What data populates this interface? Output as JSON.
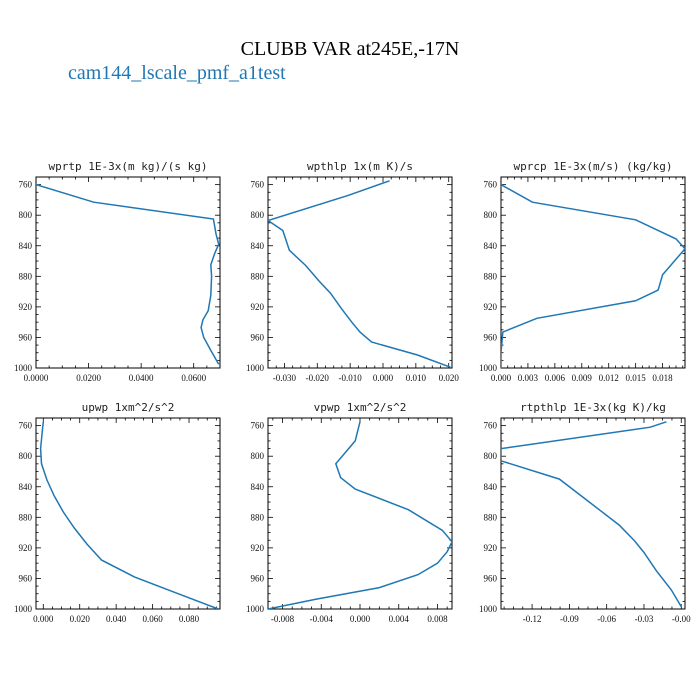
{
  "figure": {
    "title": "CLUBB VAR at245E,-17N",
    "legend_label": "cam144_lscale_pmf_a1test",
    "series_color": "#1f77b4"
  },
  "chart_data": [
    {
      "type": "line",
      "title": "wprtp  1E-3x(m kg)/(s kg)",
      "xlim": [
        0.0,
        0.07
      ],
      "ylim": [
        1000,
        750
      ],
      "yinvert": true,
      "xticks": [
        0.0,
        0.02,
        0.04,
        0.06
      ],
      "xtick_labels": [
        "0.0000",
        "0.0200",
        "0.0400",
        "0.0600"
      ],
      "yticks": [
        760,
        800,
        840,
        880,
        920,
        960,
        1000
      ],
      "x": [
        0.0,
        0.022,
        0.0675,
        0.0685,
        0.0695,
        0.068,
        0.0665,
        0.0668,
        0.0665,
        0.0655,
        0.0635,
        0.0628,
        0.0638,
        0.0665,
        0.0695
      ],
      "y": [
        760,
        783,
        805,
        825,
        838,
        850,
        865,
        880,
        905,
        925,
        937,
        947,
        960,
        977,
        995
      ]
    },
    {
      "type": "line",
      "title": "wpthlp  1x(m K)/s",
      "xlim": [
        -0.035,
        0.021
      ],
      "ylim": [
        1000,
        750
      ],
      "yinvert": true,
      "xticks": [
        -0.03,
        -0.02,
        -0.01,
        0.0,
        0.01,
        0.02
      ],
      "xtick_labels": [
        "-0.030",
        "-0.020",
        "-0.010",
        "0.000",
        "0.010",
        "0.020"
      ],
      "yticks": [
        760,
        800,
        840,
        880,
        920,
        960,
        1000
      ],
      "x": [
        0.002,
        -0.0105,
        -0.035,
        -0.0305,
        -0.0285,
        -0.0235,
        -0.0195,
        -0.016,
        -0.0125,
        -0.0095,
        -0.007,
        -0.0035,
        0.0105,
        0.0205
      ],
      "y": [
        755,
        774,
        807,
        820,
        846,
        866,
        886,
        902,
        923,
        940,
        953,
        966,
        983,
        999
      ]
    },
    {
      "type": "line",
      "title": "wprcp  1E-3x(m/s) (kg/kg)",
      "xlim": [
        0.0,
        0.0205
      ],
      "ylim": [
        1000,
        750
      ],
      "yinvert": true,
      "xticks": [
        0.0,
        0.003,
        0.006,
        0.009,
        0.012,
        0.015,
        0.018
      ],
      "xtick_labels": [
        "0.000",
        "0.003",
        "0.006",
        "0.009",
        "0.012",
        "0.015",
        "0.018"
      ],
      "yticks": [
        760,
        800,
        840,
        880,
        920,
        960,
        1000
      ],
      "x": [
        0.0,
        0.0035,
        0.015,
        0.0195,
        0.0205,
        0.018,
        0.0175,
        0.015,
        0.004,
        0.0002,
        0.0,
        0.0
      ],
      "y": [
        760,
        783,
        806,
        831,
        844,
        878,
        898,
        912,
        935,
        953,
        980,
        1000
      ]
    },
    {
      "type": "line",
      "title": "upwp  1xm^2/s^2",
      "xlim": [
        -0.004,
        0.097
      ],
      "ylim": [
        1000,
        750
      ],
      "yinvert": true,
      "xticks": [
        0.0,
        0.02,
        0.04,
        0.06,
        0.08
      ],
      "xtick_labels": [
        "0.000",
        "0.020",
        "0.040",
        "0.060",
        "0.080"
      ],
      "yticks": [
        760,
        800,
        840,
        880,
        920,
        960,
        1000
      ],
      "x": [
        0.0,
        -0.0005,
        -0.0015,
        -0.001,
        0.002,
        0.006,
        0.011,
        0.017,
        0.024,
        0.032,
        0.05,
        0.074,
        0.096
      ],
      "y": [
        755,
        766,
        790,
        810,
        831,
        852,
        873,
        894,
        915,
        936,
        958,
        980,
        1000
      ]
    },
    {
      "type": "line",
      "title": "vpwp  1xm^2/s^2",
      "xlim": [
        -0.0095,
        0.0095
      ],
      "ylim": [
        1000,
        750
      ],
      "yinvert": true,
      "xticks": [
        -0.008,
        -0.004,
        0.0,
        0.004,
        0.008
      ],
      "xtick_labels": [
        "-0.008",
        "-0.004",
        "0.000",
        "0.004",
        "0.008"
      ],
      "yticks": [
        760,
        800,
        840,
        880,
        920,
        960,
        1000
      ],
      "x": [
        0.0,
        -0.0005,
        -0.0025,
        -0.002,
        -0.0005,
        0.005,
        0.0085,
        0.0095,
        0.009,
        0.008,
        0.006,
        0.002,
        -0.0045,
        -0.0095
      ],
      "y": [
        755,
        780,
        810,
        828,
        843,
        870,
        897,
        912,
        925,
        940,
        955,
        972,
        987,
        1000
      ]
    },
    {
      "type": "line",
      "title": "rtpthlp  1E-3x(kg K)/kg",
      "xlim": [
        -0.145,
        0.003
      ],
      "ylim": [
        1000,
        750
      ],
      "yinvert": true,
      "xticks": [
        -0.12,
        -0.09,
        -0.06,
        -0.03,
        0.0
      ],
      "xtick_labels": [
        "-0.12",
        "-0.09",
        "-0.06",
        "-0.03",
        "-0.00"
      ],
      "yticks": [
        760,
        800,
        840,
        880,
        920,
        960,
        1000
      ],
      "x": [
        -0.012,
        -0.025,
        -0.145,
        -0.145,
        -0.098,
        -0.082,
        -0.066,
        -0.05,
        -0.038,
        -0.03,
        -0.02,
        -0.008,
        0.0
      ],
      "y": [
        755,
        762,
        790,
        806,
        830,
        850,
        870,
        890,
        910,
        926,
        950,
        975,
        997
      ]
    }
  ]
}
